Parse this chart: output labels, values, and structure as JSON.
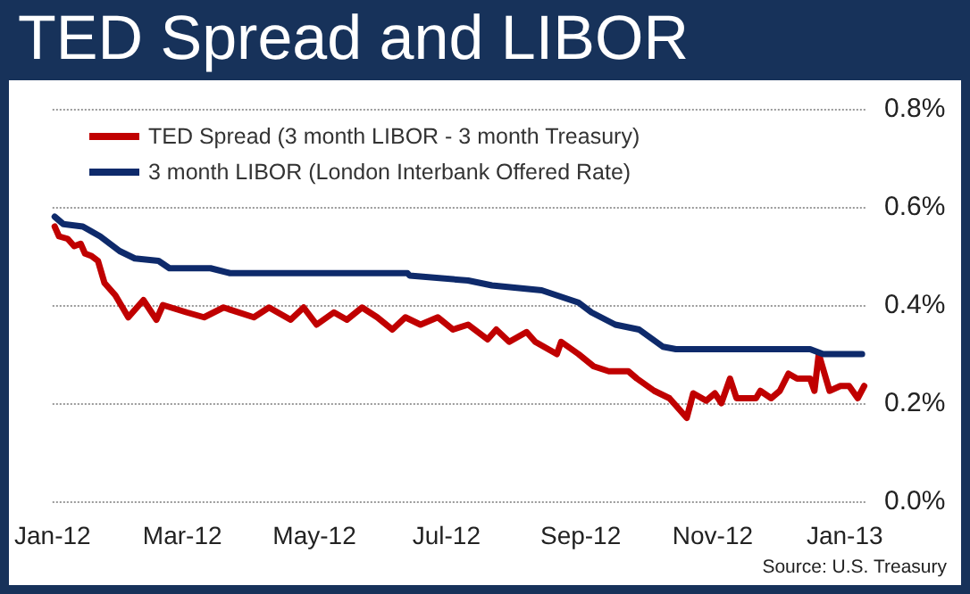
{
  "chart_data": {
    "type": "line",
    "title": "TED Spread and LIBOR",
    "annotations": [
      "Source:  U.S. Treasury"
    ],
    "series": [
      {
        "name": "TED Spread (3 month LIBOR - 3 month Treasury)",
        "color": "#c00000",
        "x": [
          "2012-01-02",
          "2012-01-04",
          "2012-01-08",
          "2012-01-11",
          "2012-01-14",
          "2012-01-16",
          "2012-01-19",
          "2012-01-22",
          "2012-01-25",
          "2012-01-30",
          "2012-02-05",
          "2012-02-12",
          "2012-02-18",
          "2012-02-21",
          "2012-03-03",
          "2012-03-11",
          "2012-03-20",
          "2012-04-03",
          "2012-04-10",
          "2012-04-20",
          "2012-04-26",
          "2012-05-02",
          "2012-05-10",
          "2012-05-16",
          "2012-05-23",
          "2012-05-30",
          "2012-06-06",
          "2012-06-12",
          "2012-06-19",
          "2012-06-27",
          "2012-07-04",
          "2012-07-11",
          "2012-07-20",
          "2012-07-24",
          "2012-07-30",
          "2012-08-07",
          "2012-08-11",
          "2012-08-21",
          "2012-08-23",
          "2012-08-31",
          "2012-09-07",
          "2012-09-14",
          "2012-09-23",
          "2012-09-27",
          "2012-10-05",
          "2012-10-12",
          "2012-10-20",
          "2012-10-23",
          "2012-10-29",
          "2012-11-02",
          "2012-11-05",
          "2012-11-09",
          "2012-11-12",
          "2012-11-21",
          "2012-11-23",
          "2012-11-28",
          "2012-12-02",
          "2012-12-06",
          "2012-12-10",
          "2012-12-16",
          "2012-12-18",
          "2012-12-20",
          "2012-12-25",
          "2012-12-30",
          "2013-01-03",
          "2013-01-07",
          "2013-01-10"
        ],
        "values": [
          0.56,
          0.54,
          0.535,
          0.52,
          0.525,
          0.505,
          0.5,
          0.49,
          0.445,
          0.42,
          0.375,
          0.41,
          0.37,
          0.4,
          0.385,
          0.375,
          0.395,
          0.375,
          0.395,
          0.37,
          0.395,
          0.36,
          0.385,
          0.37,
          0.395,
          0.375,
          0.35,
          0.375,
          0.36,
          0.375,
          0.35,
          0.36,
          0.33,
          0.35,
          0.325,
          0.345,
          0.325,
          0.3,
          0.325,
          0.3,
          0.275,
          0.265,
          0.265,
          0.25,
          0.225,
          0.21,
          0.17,
          0.22,
          0.205,
          0.22,
          0.2,
          0.25,
          0.21,
          0.21,
          0.225,
          0.21,
          0.225,
          0.26,
          0.25,
          0.25,
          0.225,
          0.3,
          0.225,
          0.235,
          0.235,
          0.21,
          0.235
        ]
      },
      {
        "name": "3 month LIBOR (London Interbank Offered Rate)",
        "color": "#0e2a6b",
        "x": [
          "2012-01-02",
          "2012-01-06",
          "2012-01-15",
          "2012-01-23",
          "2012-02-01",
          "2012-02-08",
          "2012-02-19",
          "2012-02-24",
          "2012-03-14",
          "2012-03-23",
          "2012-04-14",
          "2012-05-04",
          "2012-06-13",
          "2012-06-14",
          "2012-07-11",
          "2012-07-22",
          "2012-08-14",
          "2012-08-31",
          "2012-09-06",
          "2012-09-17",
          "2012-09-28",
          "2012-10-09",
          "2012-10-15",
          "2012-11-12",
          "2012-12-16",
          "2012-12-22",
          "2013-01-09"
        ],
        "values": [
          0.58,
          0.565,
          0.56,
          0.54,
          0.51,
          0.495,
          0.49,
          0.475,
          0.475,
          0.465,
          0.465,
          0.465,
          0.465,
          0.46,
          0.45,
          0.44,
          0.43,
          0.405,
          0.385,
          0.36,
          0.35,
          0.315,
          0.31,
          0.31,
          0.31,
          0.3,
          0.3
        ]
      }
    ],
    "xlim": [
      "2012-01-01",
      "2013-01-11"
    ],
    "xticks": [
      {
        "value": "2012-01-01",
        "label": "Jan-12"
      },
      {
        "value": "2012-03-01",
        "label": "Mar-12"
      },
      {
        "value": "2012-05-01",
        "label": "May-12"
      },
      {
        "value": "2012-07-01",
        "label": "Jul-12"
      },
      {
        "value": "2012-09-01",
        "label": "Sep-12"
      },
      {
        "value": "2012-11-01",
        "label": "Nov-12"
      },
      {
        "value": "2013-01-01",
        "label": "Jan-13"
      }
    ],
    "ylim": [
      0,
      0.8
    ],
    "yticks": [
      {
        "value": 0,
        "label": "0.0%"
      },
      {
        "value": 0.2,
        "label": "0.2%"
      },
      {
        "value": 0.4,
        "label": "0.4%"
      },
      {
        "value": 0.6,
        "label": "0.6%"
      },
      {
        "value": 0.8,
        "label": "0.8%"
      }
    ],
    "grid": "y",
    "legend": "top left",
    "marker": "none",
    "line_style": "solid"
  }
}
